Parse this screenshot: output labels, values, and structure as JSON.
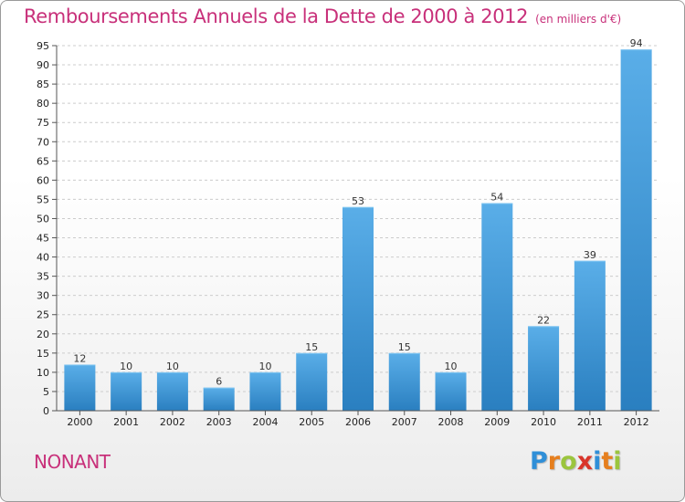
{
  "header": {
    "title": "Remboursements Annuels de la Dette de 2000 à 2012",
    "unit": "(en milliers d'€)"
  },
  "footer": {
    "commune": "NONANT",
    "logo_letters": [
      {
        "char": "P",
        "color": "#2f8fd8"
      },
      {
        "char": "r",
        "color": "#e67f1e"
      },
      {
        "char": "o",
        "color": "#9bc53d"
      },
      {
        "char": "x",
        "color": "#d9352b"
      },
      {
        "char": "i",
        "color": "#2f8fd8"
      },
      {
        "char": "t",
        "color": "#e67f1e"
      },
      {
        "char": "i",
        "color": "#9bc53d"
      }
    ]
  },
  "chart_data": {
    "type": "bar",
    "title": "Remboursements Annuels de la Dette de 2000 à 2012",
    "categories": [
      "2000",
      "2001",
      "2002",
      "2003",
      "2004",
      "2005",
      "2006",
      "2007",
      "2008",
      "2009",
      "2010",
      "2011",
      "2012"
    ],
    "values": [
      12,
      10,
      10,
      6,
      10,
      15,
      53,
      15,
      10,
      54,
      22,
      39,
      94
    ],
    "ylim": [
      0,
      95
    ],
    "yticks": [
      0,
      5,
      10,
      15,
      20,
      25,
      30,
      35,
      40,
      45,
      50,
      55,
      60,
      65,
      70,
      75,
      80,
      85,
      90,
      95
    ],
    "grid": true,
    "bar_color": "#3c94d6",
    "bar_color_light": "#5aaee8",
    "bar_color_dark": "#2a7fc0",
    "grid_color": "#cccccc"
  }
}
